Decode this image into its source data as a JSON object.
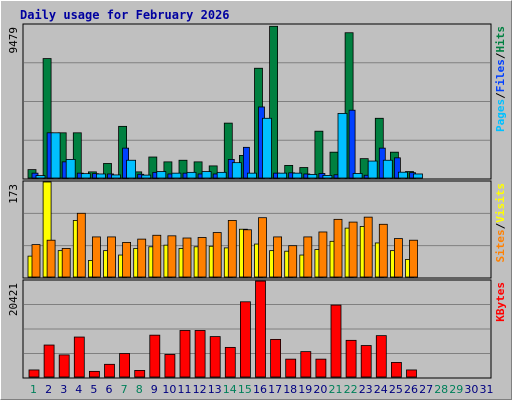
{
  "chart_data": {
    "type": "bar",
    "title": "Daily usage for February 2026",
    "days": [
      "1",
      "2",
      "3",
      "4",
      "5",
      "6",
      "7",
      "8",
      "9",
      "10",
      "11",
      "12",
      "13",
      "14",
      "15",
      "16",
      "17",
      "18",
      "19",
      "20",
      "21",
      "22",
      "23",
      "24",
      "25",
      "26",
      "27",
      "28",
      "29",
      "30",
      "31"
    ],
    "weekend_days": [
      "1",
      "7",
      "8",
      "14",
      "15",
      "21",
      "22",
      "28",
      "29"
    ],
    "panels": [
      {
        "name": "hits-files-pages",
        "ymax_label": "9479",
        "ylim": [
          0,
          9479
        ],
        "legend": [
          {
            "label": "Pages",
            "color": "#00c0ff"
          },
          {
            "label": "/",
            "color": "#000000"
          },
          {
            "label": "Files",
            "color": "#0040ff"
          },
          {
            "label": "/",
            "color": "#000000"
          },
          {
            "label": "Hits",
            "color": "#008040"
          }
        ],
        "series": [
          {
            "name": "Hits",
            "color": "#008040",
            "values": [
              520,
              7400,
              2800,
              2800,
              380,
              900,
              3200,
              380,
              1300,
              1000,
              1100,
              1000,
              750,
              3400,
              1400,
              6800,
              9400,
              780,
              650,
              2900,
              1600,
              9000,
              1200,
              3700,
              1600,
              400,
              0,
              0,
              0,
              0,
              0
            ]
          },
          {
            "name": "Files",
            "color": "#0040ff",
            "values": [
              300,
              2800,
              1000,
              300,
              270,
              250,
              1850,
              230,
              350,
              250,
              300,
              250,
              250,
              1150,
              1900,
              4400,
              300,
              320,
              250,
              280,
              200,
              4200,
              170,
              1850,
              1250,
              330,
              0,
              0,
              0,
              0,
              0
            ]
          },
          {
            "name": "Pages",
            "color": "#00c0ff",
            "values": [
              150,
              2800,
              1150,
              270,
              250,
              190,
              1100,
              180,
              400,
              300,
              350,
              400,
              350,
              950,
              300,
              3700,
              300,
              300,
              220,
              160,
              4000,
              280,
              1050,
              1100,
              360,
              250,
              0,
              0,
              0,
              0,
              0
            ]
          }
        ]
      },
      {
        "name": "visits-sites",
        "ymax_label": "173",
        "ylim": [
          0,
          173
        ],
        "legend": [
          {
            "label": "Sites",
            "color": "#ff8000"
          },
          {
            "label": "/",
            "color": "#000000"
          },
          {
            "label": "Visits",
            "color": "#ffff00"
          }
        ],
        "series": [
          {
            "name": "Visits",
            "color": "#ffff00",
            "values": [
              38,
              173,
              48,
              103,
              30,
              48,
              40,
              52,
              55,
              58,
              52,
              55,
              56,
              53,
              87,
              60,
              48,
              47,
              40,
              50,
              65,
              89,
              92,
              62,
              48,
              32,
              0,
              0,
              0,
              0,
              0
            ]
          },
          {
            "name": "Sites",
            "color": "#ff8000",
            "values": [
              59,
              67,
              52,
              116,
              73,
              73,
              63,
              69,
              76,
              75,
              71,
              72,
              81,
              103,
              86,
              108,
              73,
              57,
              73,
              82,
              105,
              100,
              109,
              96,
              70,
              67,
              0,
              0,
              0,
              0,
              0
            ]
          }
        ]
      },
      {
        "name": "kbytes",
        "ymax_label": "20421",
        "ylim": [
          0,
          20421
        ],
        "legend": [
          {
            "label": "KBytes",
            "color": "#ff0000"
          }
        ],
        "series": [
          {
            "name": "KBytes",
            "color": "#ff0000",
            "values": [
              1500,
              6800,
              4700,
              8500,
              1200,
              2700,
              5000,
              1400,
              8900,
              4800,
              9900,
              9900,
              8600,
              6300,
              16000,
              20400,
              8000,
              3800,
              5400,
              3800,
              15300,
              7800,
              6700,
              8800,
              3100,
              1500,
              0,
              0,
              0,
              0,
              0
            ]
          }
        ]
      }
    ]
  }
}
